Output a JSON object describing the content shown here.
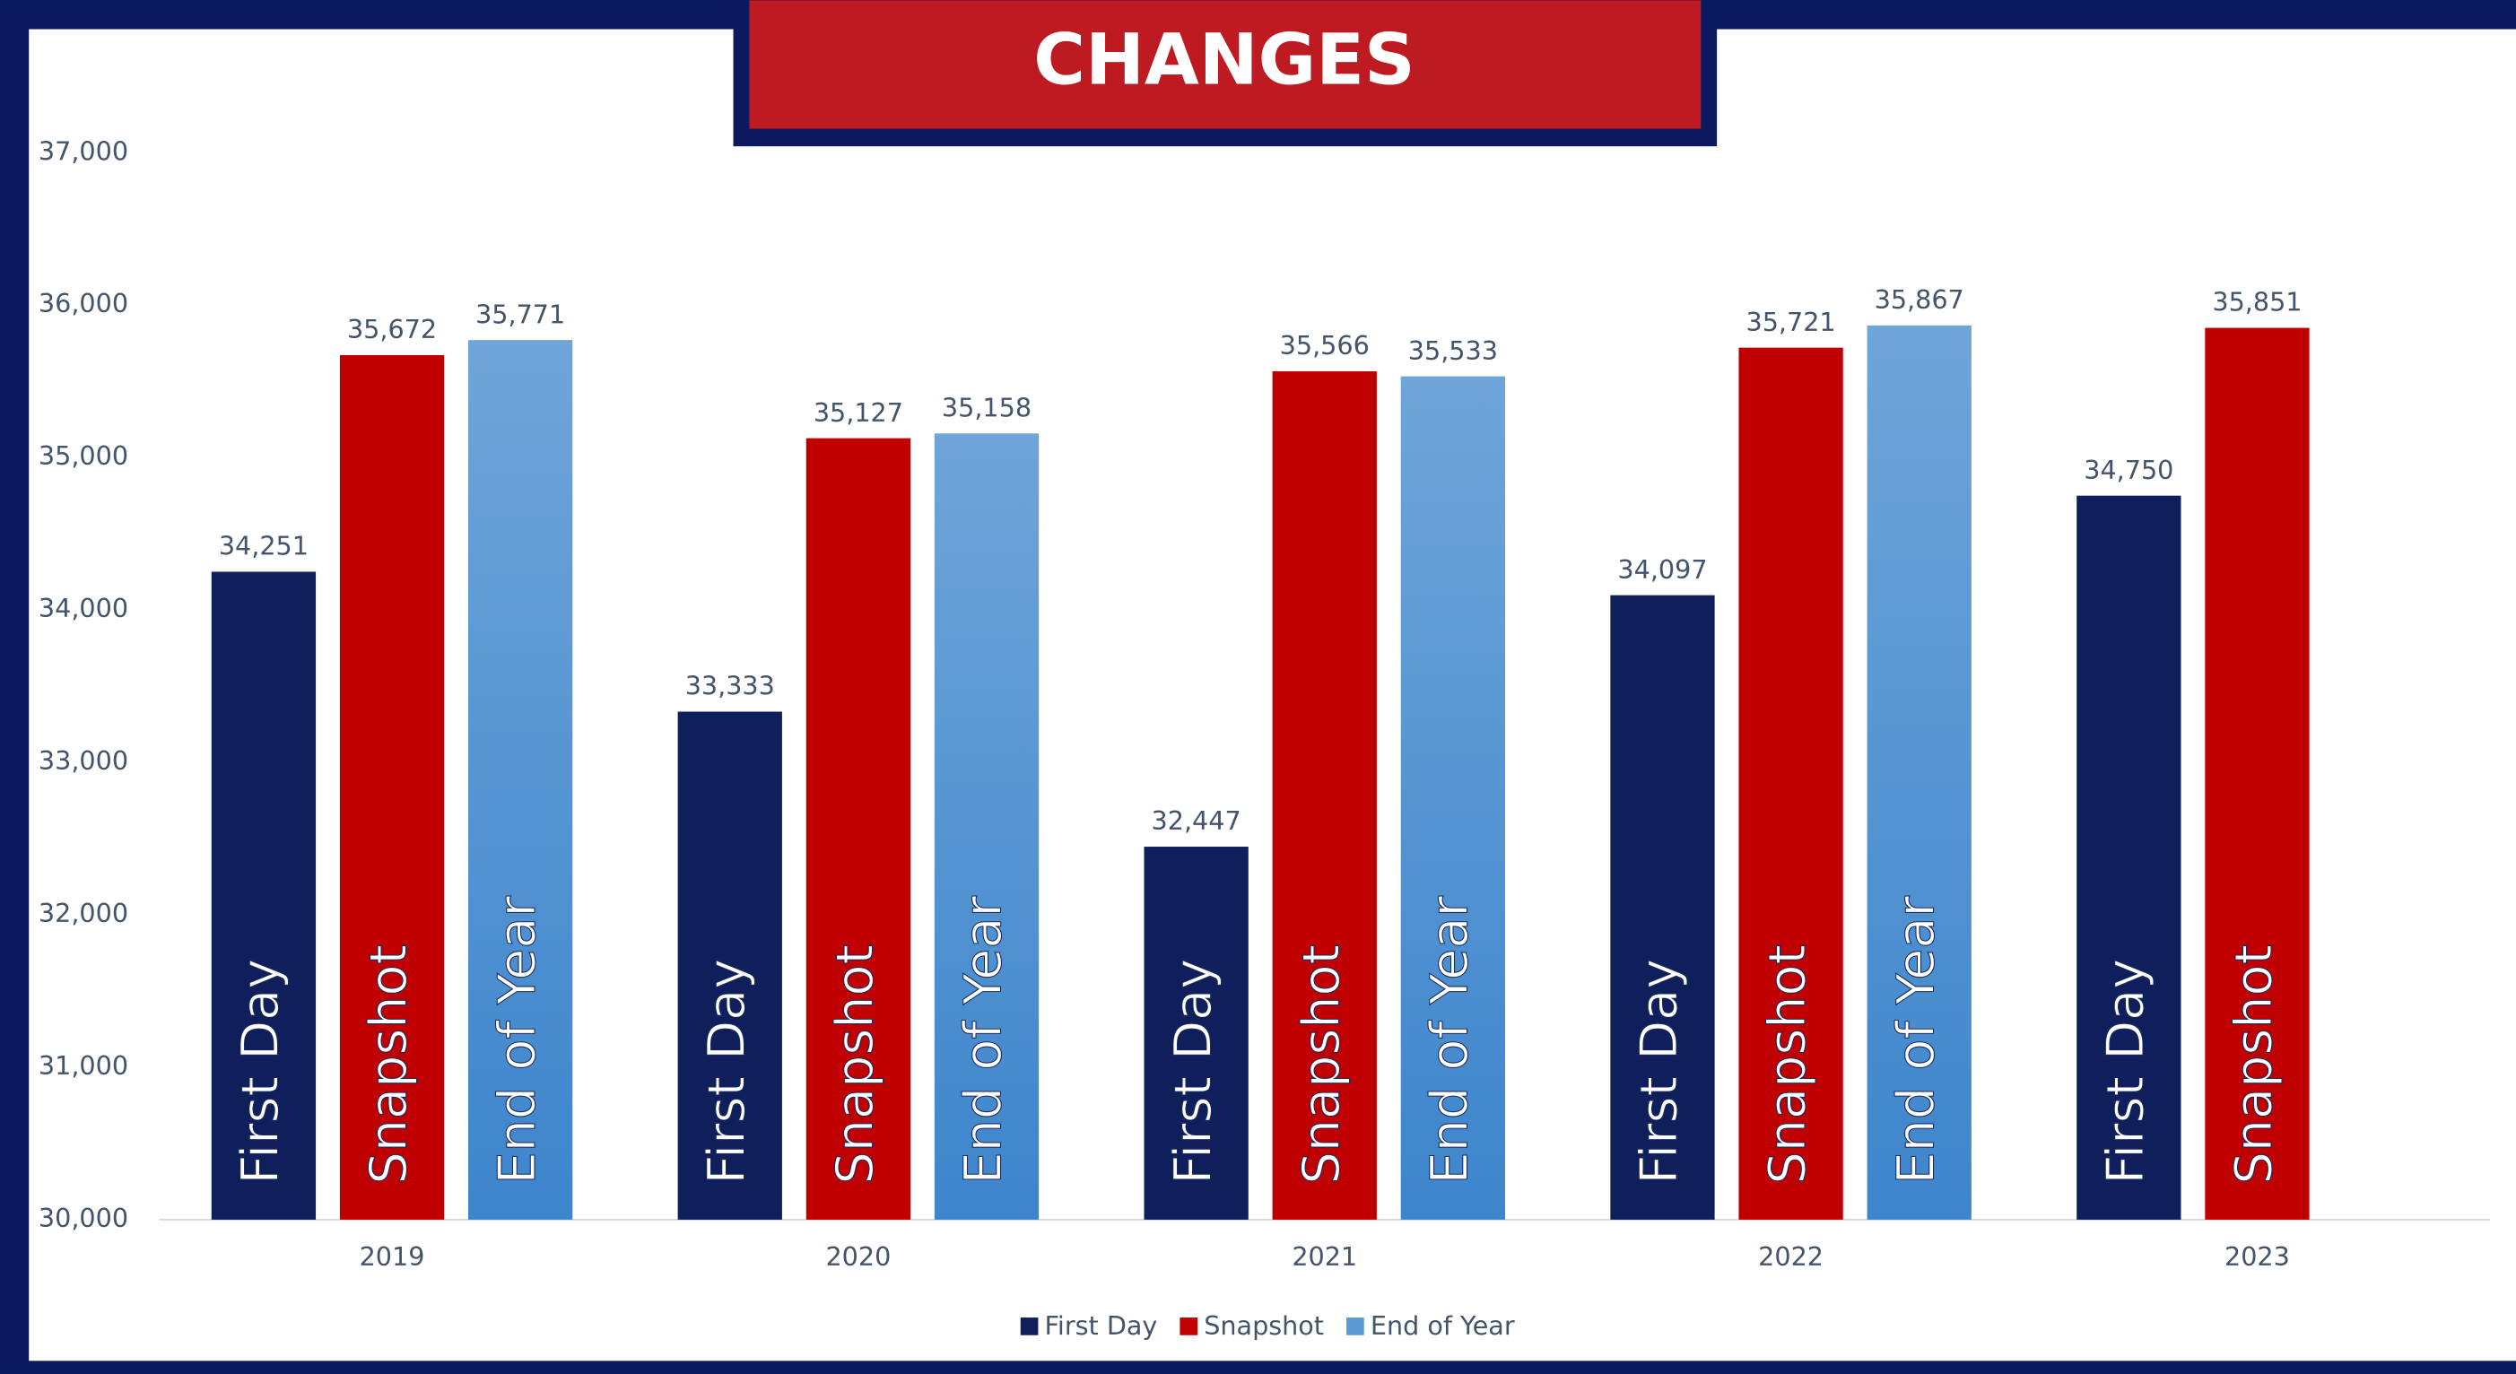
{
  "chart_data": {
    "type": "bar",
    "title": "CHANGES",
    "categories": [
      "2019",
      "2020",
      "2021",
      "2022",
      "2023"
    ],
    "series": [
      {
        "name": "First Day",
        "color": "#0e1f5b",
        "values": [
          34251,
          33333,
          32447,
          34097,
          34750
        ],
        "value_labels": [
          "34,251",
          "33,333",
          "32,447",
          "34,097",
          "34,750"
        ]
      },
      {
        "name": "Snapshot",
        "color": "#c00000",
        "values": [
          35672,
          35127,
          35566,
          35721,
          35851
        ],
        "value_labels": [
          "35,672",
          "35,127",
          "35,566",
          "35,721",
          "35,851"
        ]
      },
      {
        "name": "End of Year",
        "color": "#5b9bd5",
        "values": [
          35771,
          35158,
          35533,
          35867,
          null
        ],
        "value_labels": [
          "35,771",
          "35,158",
          "35,533",
          "35,867",
          null
        ]
      }
    ],
    "ylim": [
      30000,
      37000
    ],
    "yticks": [
      {
        "value": 30000,
        "label": "30,000"
      },
      {
        "value": 31000,
        "label": "31,000"
      },
      {
        "value": 32000,
        "label": "32,000"
      },
      {
        "value": 33000,
        "label": "33,000"
      },
      {
        "value": 34000,
        "label": "34,000"
      },
      {
        "value": 35000,
        "label": "35,000"
      },
      {
        "value": 36000,
        "label": "36,000"
      },
      {
        "value": 37000,
        "label": "37,000"
      }
    ],
    "legend": "bottom"
  }
}
